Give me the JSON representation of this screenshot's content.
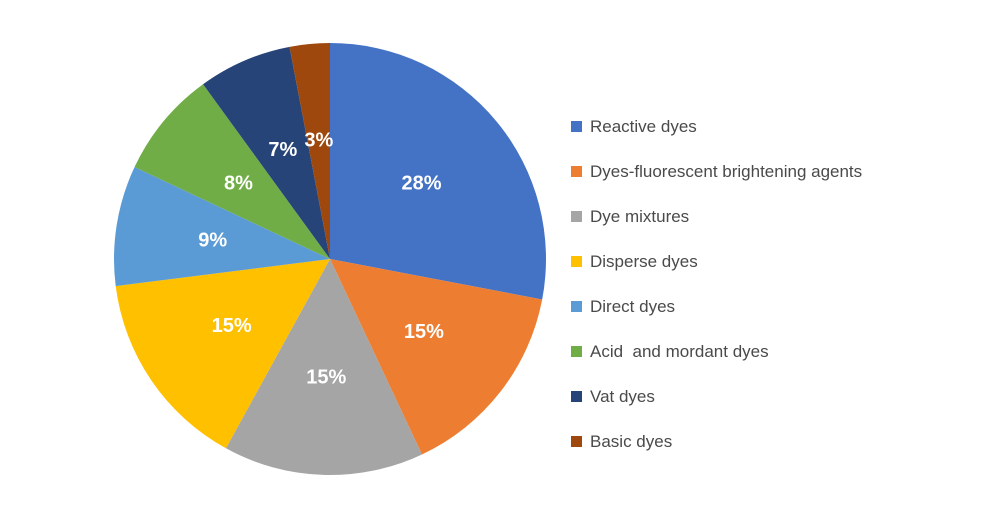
{
  "chart_data": {
    "type": "pie",
    "start_angle_deg": 90,
    "direction": "clockwise",
    "slices": [
      {
        "label": "Reactive dyes",
        "value": 28,
        "display": "28%",
        "color": "#4472C4"
      },
      {
        "label": "Dyes-fluorescent brightening agents",
        "value": 15,
        "display": "15%",
        "color": "#ED7D31"
      },
      {
        "label": "Dye mixtures",
        "value": 15,
        "display": "15%",
        "color": "#A5A5A5"
      },
      {
        "label": "Disperse dyes",
        "value": 15,
        "display": "15%",
        "color": "#FFC000"
      },
      {
        "label": "Direct dyes",
        "value": 9,
        "display": "9%",
        "color": "#5B9BD5"
      },
      {
        "label": "Acid  and mordant dyes",
        "value": 8,
        "display": "8%",
        "color": "#70AD47"
      },
      {
        "label": "Vat dyes",
        "value": 7,
        "display": "7%",
        "color": "#264478"
      },
      {
        "label": "Basic dyes",
        "value": 3,
        "display": "3%",
        "color": "#9E480E"
      }
    ],
    "legend_position": "right"
  }
}
